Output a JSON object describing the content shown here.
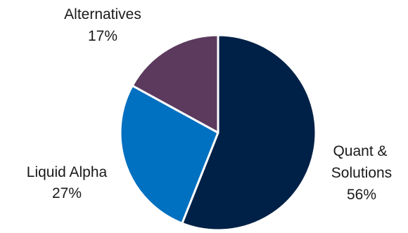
{
  "chart_data": {
    "type": "pie",
    "title": "",
    "legend": "none",
    "slices": [
      {
        "key": "quant",
        "label_lines": [
          "Quant &",
          "Solutions"
        ],
        "percent_label": "56%",
        "value": 56,
        "color": "#002147"
      },
      {
        "key": "liquid",
        "label_lines": [
          "Liquid Alpha"
        ],
        "percent_label": "27%",
        "value": 27,
        "color": "#0070c0"
      },
      {
        "key": "alternatives",
        "label_lines": [
          "Alternatives"
        ],
        "percent_label": "17%",
        "value": 17,
        "color": "#5b3a5e"
      }
    ]
  }
}
